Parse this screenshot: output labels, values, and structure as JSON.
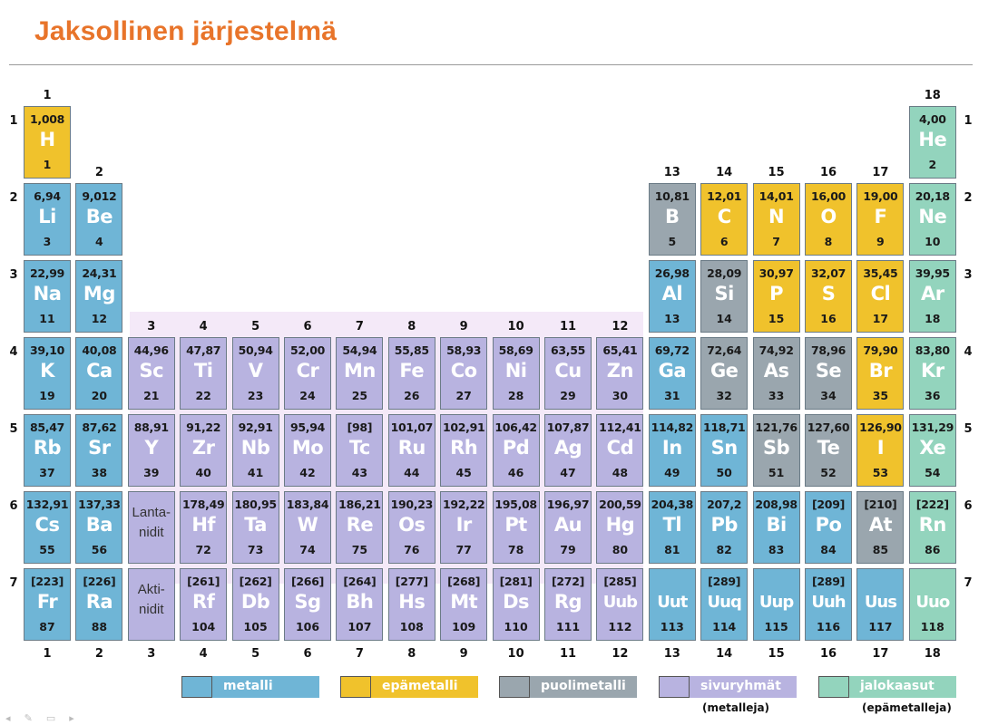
{
  "title": "Jaksollinen järjestelmä",
  "group_numbers": [
    "1",
    "2",
    "3",
    "4",
    "5",
    "6",
    "7",
    "8",
    "9",
    "10",
    "11",
    "12",
    "13",
    "14",
    "15",
    "16",
    "17",
    "18"
  ],
  "period_numbers": [
    "1",
    "2",
    "3",
    "4",
    "5",
    "6",
    "7"
  ],
  "placeholders": [
    {
      "label": "Lanta-\nnidit",
      "row": 6,
      "col": 3
    },
    {
      "label": "Akti-\nnidit",
      "row": 7,
      "col": 3
    }
  ],
  "elements": [
    {
      "sym": "H",
      "num": "1",
      "mass": "1,008",
      "cat": "nonmetal",
      "row": 1,
      "col": 1
    },
    {
      "sym": "He",
      "num": "2",
      "mass": "4,00",
      "cat": "noble",
      "row": 1,
      "col": 18
    },
    {
      "sym": "Li",
      "num": "3",
      "mass": "6,94",
      "cat": "metal",
      "row": 2,
      "col": 1
    },
    {
      "sym": "Be",
      "num": "4",
      "mass": "9,012",
      "cat": "metal",
      "row": 2,
      "col": 2
    },
    {
      "sym": "B",
      "num": "5",
      "mass": "10,81",
      "cat": "metalloid",
      "row": 2,
      "col": 13
    },
    {
      "sym": "C",
      "num": "6",
      "mass": "12,01",
      "cat": "nonmetal",
      "row": 2,
      "col": 14
    },
    {
      "sym": "N",
      "num": "7",
      "mass": "14,01",
      "cat": "nonmetal",
      "row": 2,
      "col": 15
    },
    {
      "sym": "O",
      "num": "8",
      "mass": "16,00",
      "cat": "nonmetal",
      "row": 2,
      "col": 16
    },
    {
      "sym": "F",
      "num": "9",
      "mass": "19,00",
      "cat": "nonmetal",
      "row": 2,
      "col": 17
    },
    {
      "sym": "Ne",
      "num": "10",
      "mass": "20,18",
      "cat": "noble",
      "row": 2,
      "col": 18
    },
    {
      "sym": "Na",
      "num": "11",
      "mass": "22,99",
      "cat": "metal",
      "row": 3,
      "col": 1
    },
    {
      "sym": "Mg",
      "num": "12",
      "mass": "24,31",
      "cat": "metal",
      "row": 3,
      "col": 2
    },
    {
      "sym": "Al",
      "num": "13",
      "mass": "26,98",
      "cat": "metal",
      "row": 3,
      "col": 13
    },
    {
      "sym": "Si",
      "num": "14",
      "mass": "28,09",
      "cat": "metalloid",
      "row": 3,
      "col": 14
    },
    {
      "sym": "P",
      "num": "15",
      "mass": "30,97",
      "cat": "nonmetal",
      "row": 3,
      "col": 15
    },
    {
      "sym": "S",
      "num": "16",
      "mass": "32,07",
      "cat": "nonmetal",
      "row": 3,
      "col": 16
    },
    {
      "sym": "Cl",
      "num": "17",
      "mass": "35,45",
      "cat": "nonmetal",
      "row": 3,
      "col": 17
    },
    {
      "sym": "Ar",
      "num": "18",
      "mass": "39,95",
      "cat": "noble",
      "row": 3,
      "col": 18
    },
    {
      "sym": "K",
      "num": "19",
      "mass": "39,10",
      "cat": "metal",
      "row": 4,
      "col": 1
    },
    {
      "sym": "Ca",
      "num": "20",
      "mass": "40,08",
      "cat": "metal",
      "row": 4,
      "col": 2
    },
    {
      "sym": "Sc",
      "num": "21",
      "mass": "44,96",
      "cat": "transition",
      "row": 4,
      "col": 3
    },
    {
      "sym": "Ti",
      "num": "22",
      "mass": "47,87",
      "cat": "transition",
      "row": 4,
      "col": 4
    },
    {
      "sym": "V",
      "num": "23",
      "mass": "50,94",
      "cat": "transition",
      "row": 4,
      "col": 5
    },
    {
      "sym": "Cr",
      "num": "24",
      "mass": "52,00",
      "cat": "transition",
      "row": 4,
      "col": 6
    },
    {
      "sym": "Mn",
      "num": "25",
      "mass": "54,94",
      "cat": "transition",
      "row": 4,
      "col": 7
    },
    {
      "sym": "Fe",
      "num": "26",
      "mass": "55,85",
      "cat": "transition",
      "row": 4,
      "col": 8
    },
    {
      "sym": "Co",
      "num": "27",
      "mass": "58,93",
      "cat": "transition",
      "row": 4,
      "col": 9
    },
    {
      "sym": "Ni",
      "num": "28",
      "mass": "58,69",
      "cat": "transition",
      "row": 4,
      "col": 10
    },
    {
      "sym": "Cu",
      "num": "29",
      "mass": "63,55",
      "cat": "transition",
      "row": 4,
      "col": 11
    },
    {
      "sym": "Zn",
      "num": "30",
      "mass": "65,41",
      "cat": "transition",
      "row": 4,
      "col": 12
    },
    {
      "sym": "Ga",
      "num": "31",
      "mass": "69,72",
      "cat": "metal",
      "row": 4,
      "col": 13
    },
    {
      "sym": "Ge",
      "num": "32",
      "mass": "72,64",
      "cat": "metalloid",
      "row": 4,
      "col": 14
    },
    {
      "sym": "As",
      "num": "33",
      "mass": "74,92",
      "cat": "metalloid",
      "row": 4,
      "col": 15
    },
    {
      "sym": "Se",
      "num": "34",
      "mass": "78,96",
      "cat": "metalloid",
      "row": 4,
      "col": 16
    },
    {
      "sym": "Br",
      "num": "35",
      "mass": "79,90",
      "cat": "nonmetal",
      "row": 4,
      "col": 17
    },
    {
      "sym": "Kr",
      "num": "36",
      "mass": "83,80",
      "cat": "noble",
      "row": 4,
      "col": 18
    },
    {
      "sym": "Rb",
      "num": "37",
      "mass": "85,47",
      "cat": "metal",
      "row": 5,
      "col": 1
    },
    {
      "sym": "Sr",
      "num": "38",
      "mass": "87,62",
      "cat": "metal",
      "row": 5,
      "col": 2
    },
    {
      "sym": "Y",
      "num": "39",
      "mass": "88,91",
      "cat": "transition",
      "row": 5,
      "col": 3
    },
    {
      "sym": "Zr",
      "num": "40",
      "mass": "91,22",
      "cat": "transition",
      "row": 5,
      "col": 4
    },
    {
      "sym": "Nb",
      "num": "41",
      "mass": "92,91",
      "cat": "transition",
      "row": 5,
      "col": 5
    },
    {
      "sym": "Mo",
      "num": "42",
      "mass": "95,94",
      "cat": "transition",
      "row": 5,
      "col": 6
    },
    {
      "sym": "Tc",
      "num": "43",
      "mass": "[98]",
      "cat": "transition",
      "row": 5,
      "col": 7
    },
    {
      "sym": "Ru",
      "num": "44",
      "mass": "101,07",
      "cat": "transition",
      "row": 5,
      "col": 8
    },
    {
      "sym": "Rh",
      "num": "45",
      "mass": "102,91",
      "cat": "transition",
      "row": 5,
      "col": 9
    },
    {
      "sym": "Pd",
      "num": "46",
      "mass": "106,42",
      "cat": "transition",
      "row": 5,
      "col": 10
    },
    {
      "sym": "Ag",
      "num": "47",
      "mass": "107,87",
      "cat": "transition",
      "row": 5,
      "col": 11
    },
    {
      "sym": "Cd",
      "num": "48",
      "mass": "112,41",
      "cat": "transition",
      "row": 5,
      "col": 12
    },
    {
      "sym": "In",
      "num": "49",
      "mass": "114,82",
      "cat": "metal",
      "row": 5,
      "col": 13
    },
    {
      "sym": "Sn",
      "num": "50",
      "mass": "118,71",
      "cat": "metal",
      "row": 5,
      "col": 14
    },
    {
      "sym": "Sb",
      "num": "51",
      "mass": "121,76",
      "cat": "metalloid",
      "row": 5,
      "col": 15
    },
    {
      "sym": "Te",
      "num": "52",
      "mass": "127,60",
      "cat": "metalloid",
      "row": 5,
      "col": 16
    },
    {
      "sym": "I",
      "num": "53",
      "mass": "126,90",
      "cat": "nonmetal",
      "row": 5,
      "col": 17
    },
    {
      "sym": "Xe",
      "num": "54",
      "mass": "131,29",
      "cat": "noble",
      "row": 5,
      "col": 18
    },
    {
      "sym": "Cs",
      "num": "55",
      "mass": "132,91",
      "cat": "metal",
      "row": 6,
      "col": 1
    },
    {
      "sym": "Ba",
      "num": "56",
      "mass": "137,33",
      "cat": "metal",
      "row": 6,
      "col": 2
    },
    {
      "sym": "Hf",
      "num": "72",
      "mass": "178,49",
      "cat": "transition",
      "row": 6,
      "col": 4
    },
    {
      "sym": "Ta",
      "num": "73",
      "mass": "180,95",
      "cat": "transition",
      "row": 6,
      "col": 5
    },
    {
      "sym": "W",
      "num": "74",
      "mass": "183,84",
      "cat": "transition",
      "row": 6,
      "col": 6
    },
    {
      "sym": "Re",
      "num": "75",
      "mass": "186,21",
      "cat": "transition",
      "row": 6,
      "col": 7
    },
    {
      "sym": "Os",
      "num": "76",
      "mass": "190,23",
      "cat": "transition",
      "row": 6,
      "col": 8
    },
    {
      "sym": "Ir",
      "num": "77",
      "mass": "192,22",
      "cat": "transition",
      "row": 6,
      "col": 9
    },
    {
      "sym": "Pt",
      "num": "78",
      "mass": "195,08",
      "cat": "transition",
      "row": 6,
      "col": 10
    },
    {
      "sym": "Au",
      "num": "79",
      "mass": "196,97",
      "cat": "transition",
      "row": 6,
      "col": 11
    },
    {
      "sym": "Hg",
      "num": "80",
      "mass": "200,59",
      "cat": "transition",
      "row": 6,
      "col": 12
    },
    {
      "sym": "Tl",
      "num": "81",
      "mass": "204,38",
      "cat": "metal",
      "row": 6,
      "col": 13
    },
    {
      "sym": "Pb",
      "num": "82",
      "mass": "207,2",
      "cat": "metal",
      "row": 6,
      "col": 14
    },
    {
      "sym": "Bi",
      "num": "83",
      "mass": "208,98",
      "cat": "metal",
      "row": 6,
      "col": 15
    },
    {
      "sym": "Po",
      "num": "84",
      "mass": "[209]",
      "cat": "metal",
      "row": 6,
      "col": 16
    },
    {
      "sym": "At",
      "num": "85",
      "mass": "[210]",
      "cat": "metalloid",
      "row": 6,
      "col": 17
    },
    {
      "sym": "Rn",
      "num": "86",
      "mass": "[222]",
      "cat": "noble",
      "row": 6,
      "col": 18
    },
    {
      "sym": "Fr",
      "num": "87",
      "mass": "[223]",
      "cat": "metal",
      "row": 7,
      "col": 1
    },
    {
      "sym": "Ra",
      "num": "88",
      "mass": "[226]",
      "cat": "metal",
      "row": 7,
      "col": 2
    },
    {
      "sym": "Rf",
      "num": "104",
      "mass": "[261]",
      "cat": "transition",
      "row": 7,
      "col": 4
    },
    {
      "sym": "Db",
      "num": "105",
      "mass": "[262]",
      "cat": "transition",
      "row": 7,
      "col": 5
    },
    {
      "sym": "Sg",
      "num": "106",
      "mass": "[266]",
      "cat": "transition",
      "row": 7,
      "col": 6
    },
    {
      "sym": "Bh",
      "num": "107",
      "mass": "[264]",
      "cat": "transition",
      "row": 7,
      "col": 7
    },
    {
      "sym": "Hs",
      "num": "108",
      "mass": "[277]",
      "cat": "transition",
      "row": 7,
      "col": 8
    },
    {
      "sym": "Mt",
      "num": "109",
      "mass": "[268]",
      "cat": "transition",
      "row": 7,
      "col": 9
    },
    {
      "sym": "Ds",
      "num": "110",
      "mass": "[281]",
      "cat": "transition",
      "row": 7,
      "col": 10
    },
    {
      "sym": "Rg",
      "num": "111",
      "mass": "[272]",
      "cat": "transition",
      "row": 7,
      "col": 11
    },
    {
      "sym": "Uub",
      "num": "112",
      "mass": "[285]",
      "cat": "transition",
      "row": 7,
      "col": 12
    },
    {
      "sym": "Uut",
      "num": "113",
      "mass": "",
      "cat": "metal",
      "row": 7,
      "col": 13
    },
    {
      "sym": "Uuq",
      "num": "114",
      "mass": "[289]",
      "cat": "metal",
      "row": 7,
      "col": 14
    },
    {
      "sym": "Uup",
      "num": "115",
      "mass": "",
      "cat": "metal",
      "row": 7,
      "col": 15
    },
    {
      "sym": "Uuh",
      "num": "116",
      "mass": "[289]",
      "cat": "metal",
      "row": 7,
      "col": 16
    },
    {
      "sym": "Uus",
      "num": "117",
      "mass": "",
      "cat": "metal",
      "row": 7,
      "col": 17
    },
    {
      "sym": "Uuo",
      "num": "118",
      "mass": "",
      "cat": "noble",
      "row": 7,
      "col": 18
    }
  ],
  "legend": [
    {
      "label": "metalli",
      "cat": "metal",
      "sub": ""
    },
    {
      "label": "epämetalli",
      "cat": "nonmetal",
      "sub": ""
    },
    {
      "label": "puolimetalli",
      "cat": "metalloid",
      "sub": ""
    },
    {
      "label": "sivuryhmät",
      "cat": "transition",
      "sub": "(metalleja)"
    },
    {
      "label": "jalokaasut",
      "cat": "noble",
      "sub": "(epämetalleja)"
    }
  ],
  "colors": {
    "title": "#e8742a",
    "metal": "#6fb5d6",
    "nonmetal": "#f0c22c",
    "metalloid": "#9aa6ae",
    "transition": "#b8b3e0",
    "noble": "#93d4bd"
  }
}
